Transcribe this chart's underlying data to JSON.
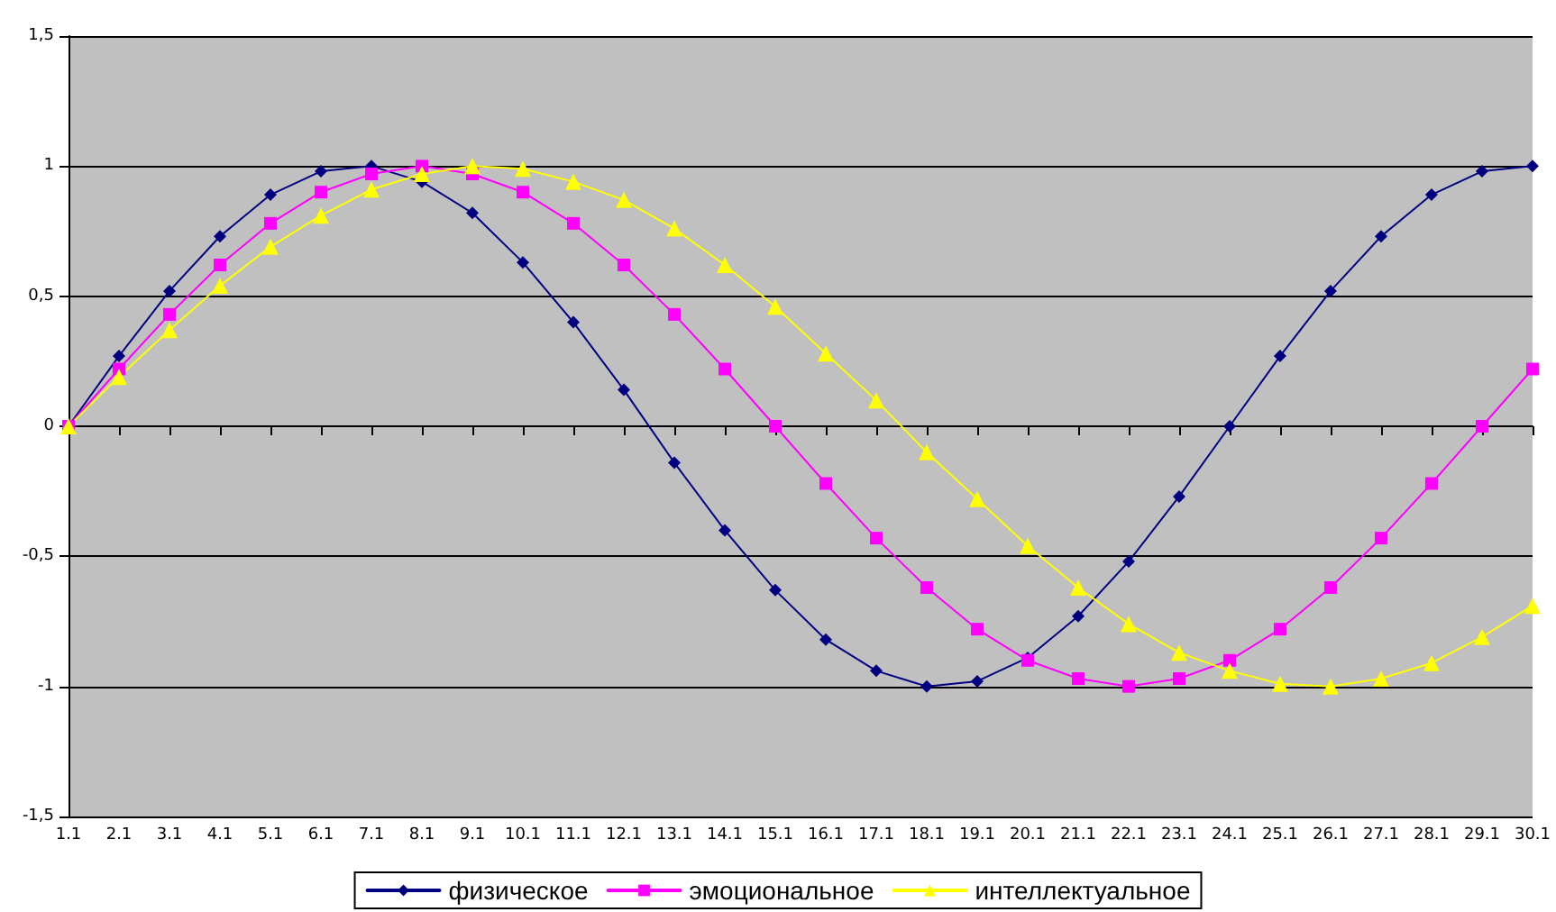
{
  "chart_data": {
    "type": "line",
    "categories": [
      "1.1",
      "2.1",
      "3.1",
      "4.1",
      "5.1",
      "6.1",
      "7.1",
      "8.1",
      "9.1",
      "10.1",
      "11.1",
      "12.1",
      "13.1",
      "14.1",
      "15.1",
      "16.1",
      "17.1",
      "18.1",
      "19.1",
      "20.1",
      "21.1",
      "22.1",
      "23.1",
      "24.1",
      "25.1",
      "26.1",
      "27.1",
      "28.1",
      "29.1",
      "30.1"
    ],
    "series": [
      {
        "name": "физическое",
        "color": "#000080",
        "marker": "diamond",
        "values": [
          0,
          0.27,
          0.52,
          0.73,
          0.89,
          0.98,
          1.0,
          0.94,
          0.82,
          0.63,
          0.4,
          0.14,
          -0.14,
          -0.4,
          -0.63,
          -0.82,
          -0.94,
          -1.0,
          -0.98,
          -0.89,
          -0.73,
          -0.52,
          -0.27,
          0,
          0.27,
          0.52,
          0.73,
          0.89,
          0.98,
          1.0
        ]
      },
      {
        "name": "эмоциональное",
        "color": "#ff00ff",
        "marker": "square",
        "values": [
          0,
          0.22,
          0.43,
          0.62,
          0.78,
          0.9,
          0.97,
          1,
          0.97,
          0.9,
          0.78,
          0.62,
          0.43,
          0.22,
          0,
          -0.22,
          -0.43,
          -0.62,
          -0.78,
          -0.9,
          -0.97,
          -1,
          -0.97,
          -0.9,
          -0.78,
          -0.62,
          -0.43,
          -0.22,
          0,
          0.22
        ]
      },
      {
        "name": "интеллектуальное",
        "color": "#ffff00",
        "marker": "triangle",
        "values": [
          0,
          0.19,
          0.37,
          0.54,
          0.69,
          0.81,
          0.91,
          0.97,
          1.0,
          0.99,
          0.94,
          0.87,
          0.76,
          0.62,
          0.46,
          0.28,
          0.1,
          -0.1,
          -0.28,
          -0.46,
          -0.62,
          -0.76,
          -0.87,
          -0.94,
          -0.99,
          -1.0,
          -0.97,
          -0.91,
          -0.81,
          -0.69
        ]
      }
    ],
    "ylim": [
      -1.5,
      1.5
    ],
    "yticks": [
      {
        "value": -1.5,
        "label": "-1,5"
      },
      -1,
      {
        "value": -0.5,
        "label": "-0,5"
      },
      0,
      {
        "value": 0.5,
        "label": "0,5"
      },
      1,
      {
        "value": 1.5,
        "label": "1,5"
      }
    ],
    "grid": "y",
    "legend": "bottom",
    "line_style": "solid"
  }
}
